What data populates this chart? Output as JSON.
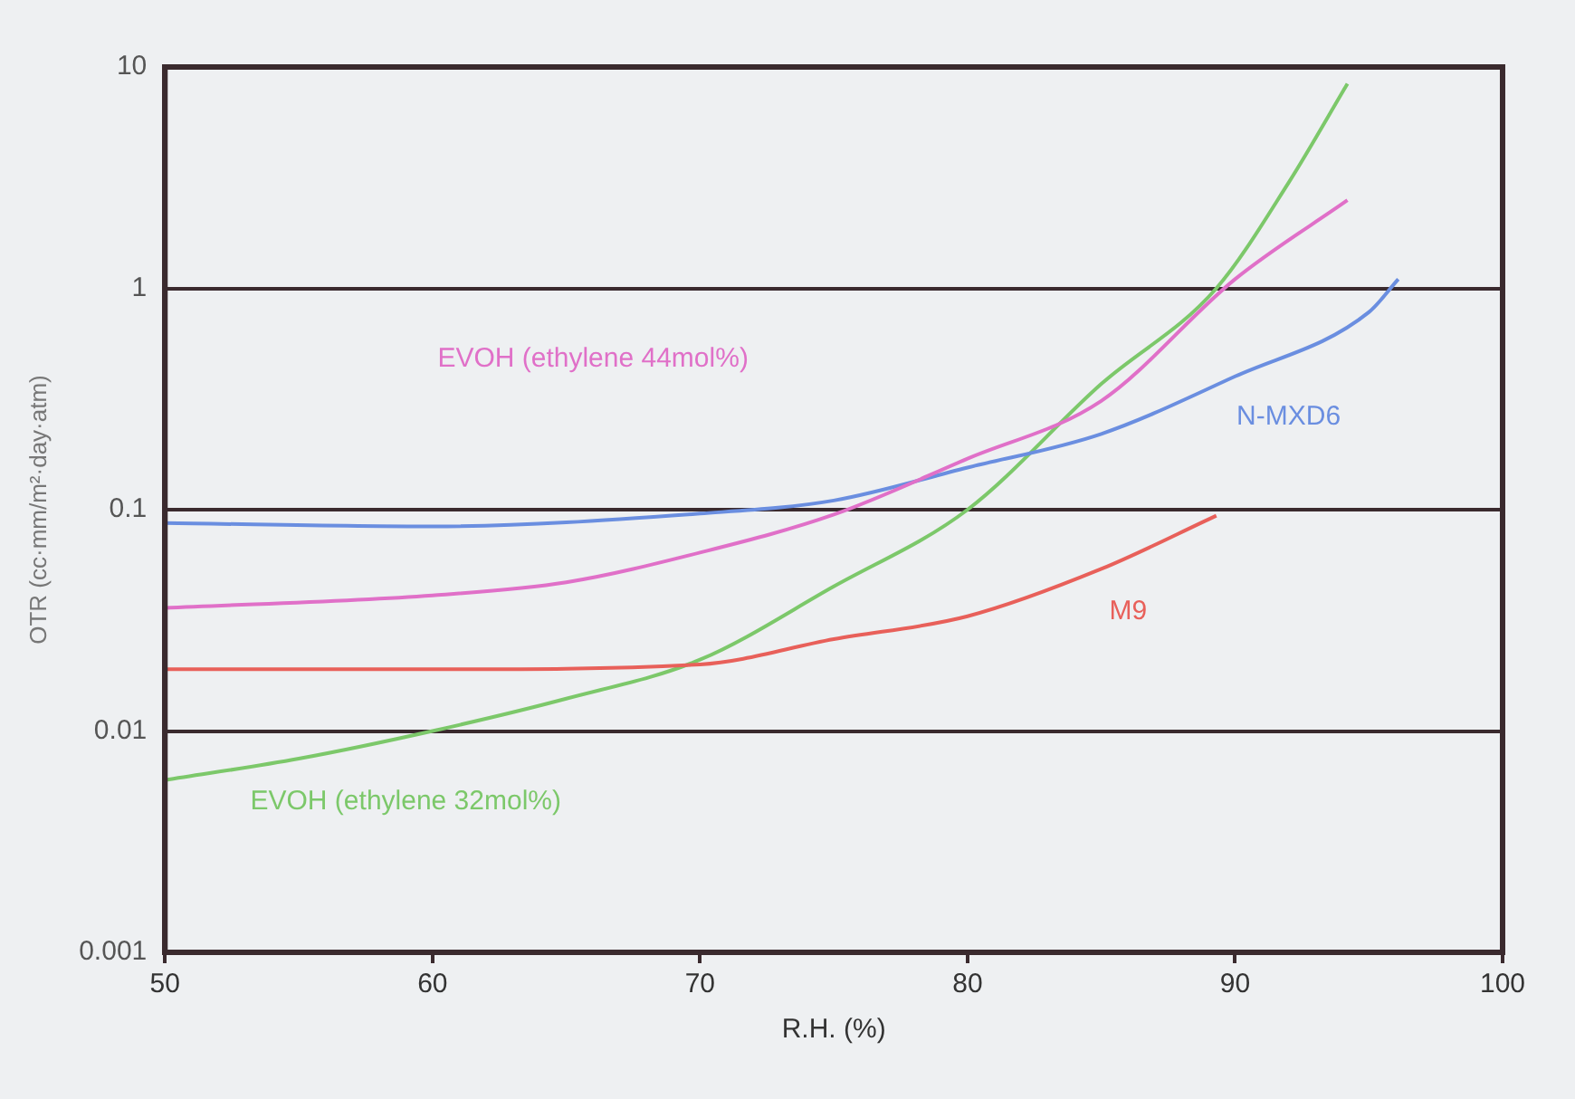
{
  "chart_data": {
    "type": "line",
    "xlabel": "R.H. (%)",
    "ylabel": "OTR (cc·mm/m²·day·atm)",
    "log": "y",
    "grid": "y",
    "legend": false,
    "marker": "none",
    "line_style": "solid",
    "xlim": [
      50,
      100
    ],
    "xticks": [
      50,
      60,
      70,
      80,
      90,
      100
    ],
    "ylim": [
      0.001,
      10
    ],
    "yticks": [
      0.001,
      0.01,
      0.1,
      1,
      10
    ],
    "series": [
      {
        "name": "EVOH (ethylene 44mol%)",
        "color": "#e070c8",
        "x": [
          50,
          60,
          65,
          70,
          75,
          80,
          85,
          90,
          94.2
        ],
        "values": [
          0.036,
          0.041,
          0.047,
          0.064,
          0.095,
          0.17,
          0.31,
          1.1,
          2.5
        ]
      },
      {
        "name": "N-MXD6",
        "color": "#6a8ee0",
        "x": [
          50,
          60,
          70,
          75,
          80,
          85,
          90,
          95,
          96.1
        ],
        "values": [
          0.087,
          0.084,
          0.096,
          0.11,
          0.155,
          0.22,
          0.4,
          0.78,
          1.1
        ]
      },
      {
        "name": "M9",
        "color": "#e8605a",
        "x": [
          50,
          60,
          70,
          75,
          80,
          85,
          89.3
        ],
        "values": [
          0.019,
          0.019,
          0.02,
          0.026,
          0.033,
          0.054,
          0.094
        ]
      },
      {
        "name": "EVOH (ethylene 32mol%)",
        "color": "#7cc86a",
        "x": [
          50,
          55,
          60,
          65,
          70,
          75,
          80,
          85,
          89.3,
          92,
          94.2
        ],
        "values": [
          0.006,
          0.0075,
          0.01,
          0.014,
          0.021,
          0.045,
          0.1,
          0.37,
          1,
          3,
          8.4
        ]
      }
    ]
  }
}
